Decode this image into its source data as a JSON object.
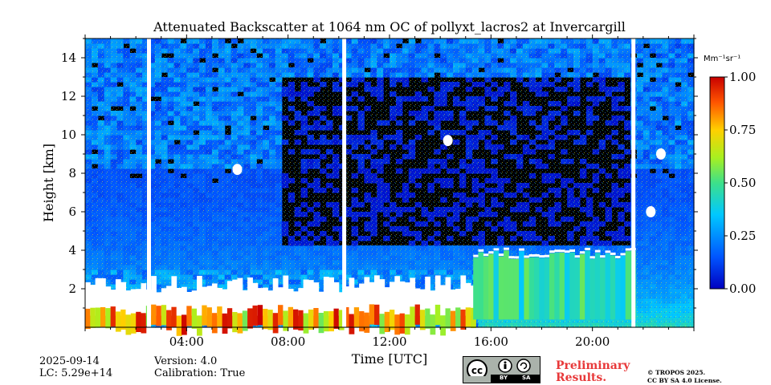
{
  "chart_data": {
    "type": "heatmap",
    "title": "Attenuated Backscatter at 1064 nm OC of pollyxt_lacros2 at Invercargill",
    "xlabel": "Time [UTC]",
    "ylabel": "Height [km]",
    "xlim": [
      0,
      24
    ],
    "ylim": [
      0,
      15
    ],
    "x_ticks": [
      {
        "value": 4,
        "label": "04:00"
      },
      {
        "value": 8,
        "label": "08:00"
      },
      {
        "value": 12,
        "label": "12:00"
      },
      {
        "value": 16,
        "label": "16:00"
      },
      {
        "value": 20,
        "label": "20:00"
      }
    ],
    "y_ticks": [
      {
        "value": 2,
        "label": "2"
      },
      {
        "value": 4,
        "label": "4"
      },
      {
        "value": 6,
        "label": "6"
      },
      {
        "value": 8,
        "label": "8"
      },
      {
        "value": 10,
        "label": "10"
      },
      {
        "value": 12,
        "label": "12"
      },
      {
        "value": 14,
        "label": "14"
      }
    ],
    "colorbar": {
      "unit": "Mm⁻¹sr⁻¹",
      "min": 0.0,
      "max": 1.0,
      "ticks": [
        "0.00",
        "0.25",
        "0.50",
        "0.75",
        "1.00"
      ],
      "colormap": "jet"
    },
    "data_gaps_utc": [
      2.5,
      10.2,
      21.6
    ],
    "features": [
      {
        "name": "boundary layer aerosol",
        "start": 0.0,
        "end": 15.3,
        "top_km": 2.3,
        "level": 0.9
      },
      {
        "name": "elevated aerosol layer",
        "start": 15.3,
        "end": 21.5,
        "top_km": 3.8,
        "level": 0.45
      },
      {
        "name": "cloud",
        "time": 6.0,
        "height_km": 8.2
      },
      {
        "name": "cloud",
        "time": 14.3,
        "height_km": 9.7
      },
      {
        "name": "cloud",
        "time": 22.7,
        "height_km": 9.0
      },
      {
        "name": "cloud",
        "time": 22.3,
        "height_km": 6.0
      }
    ]
  },
  "footer": {
    "date": "2025-09-14",
    "lc": "LC: 5.29e+14",
    "version": "Version: 4.0",
    "calibration": "Calibration: True",
    "preliminary_line1": "Preliminary",
    "preliminary_line2": "Results.",
    "copyright_line1": "© TROPOS 2025.",
    "copyright_line2": "CC BY SA 4.0 License.",
    "license_by": "BY",
    "license_sa": "SA"
  }
}
